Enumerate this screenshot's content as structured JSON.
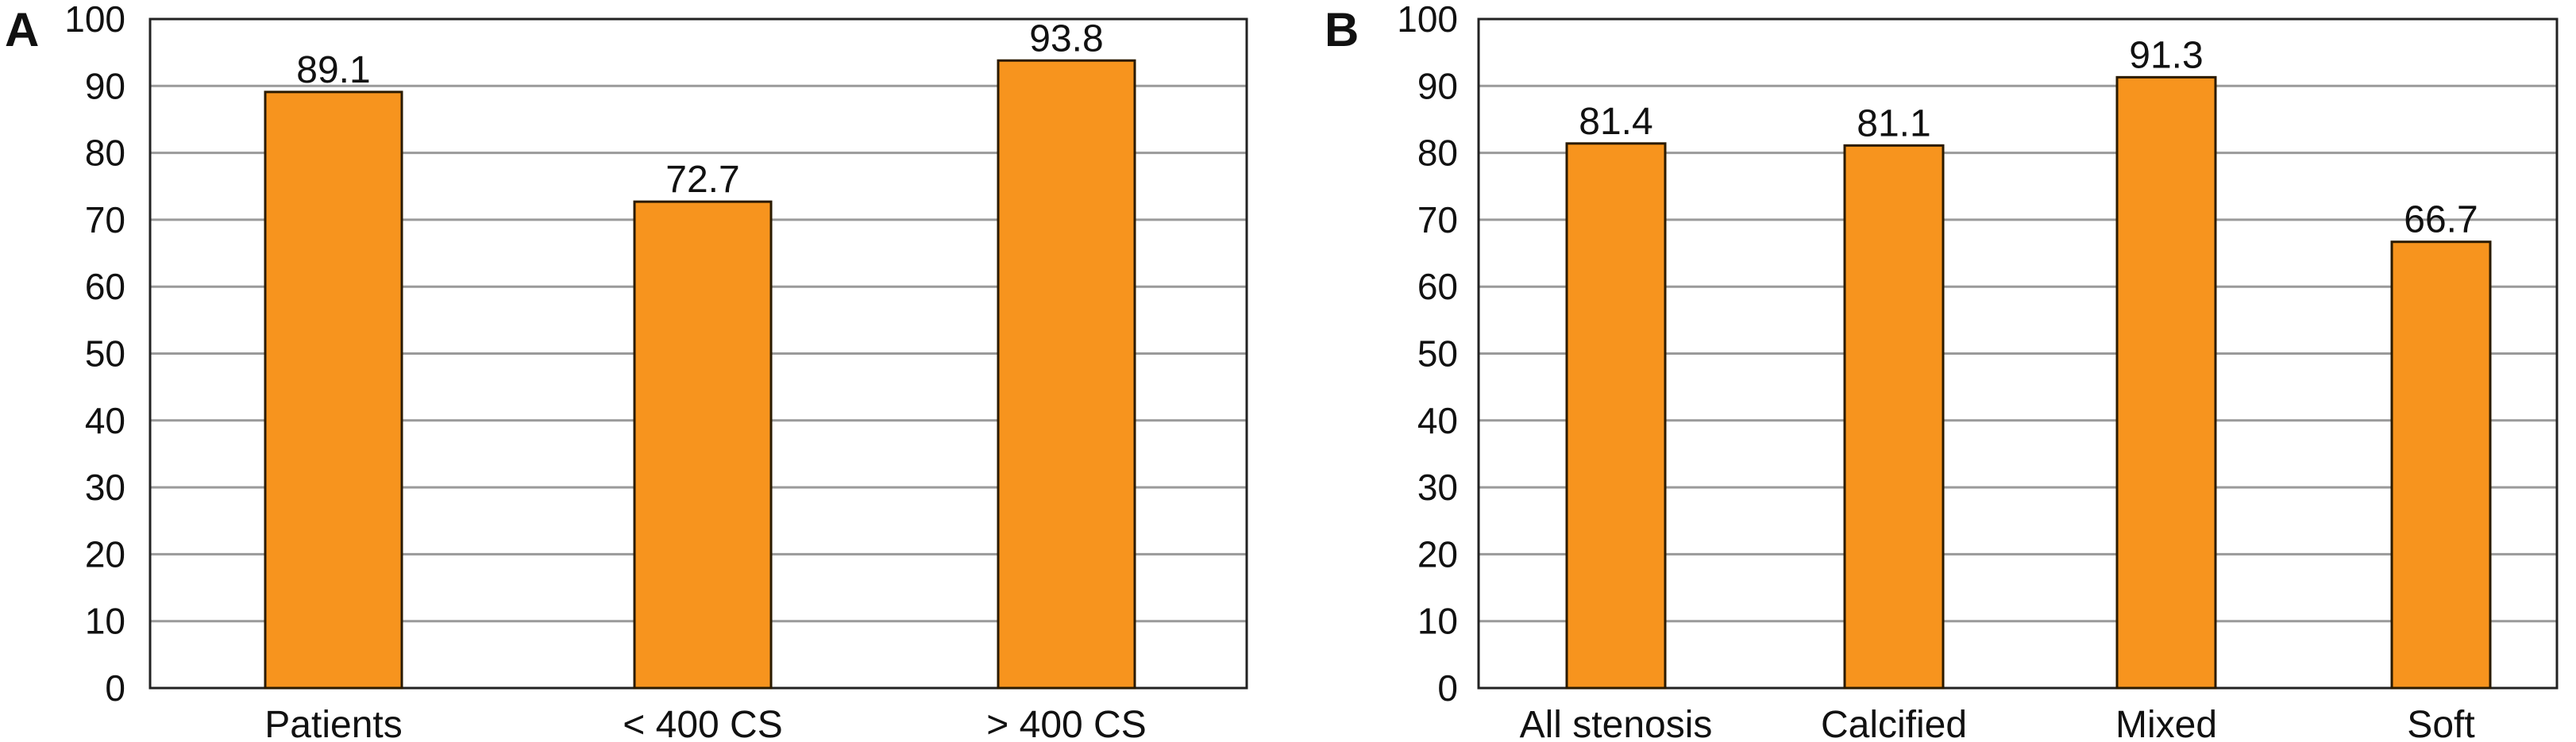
{
  "colors": {
    "bar_fill": "#F7941E",
    "grid": "#9a9a9a",
    "frame": "#222222"
  },
  "chart_data": [
    {
      "panel": "A",
      "type": "bar",
      "categories": [
        "Patients",
        "< 400 CS",
        "> 400 CS"
      ],
      "values": [
        89.1,
        72.7,
        93.8
      ],
      "value_labels": [
        "89.1",
        "72.7",
        "93.8"
      ],
      "ylim": [
        0,
        100
      ],
      "yticks": [
        0,
        10,
        20,
        30,
        40,
        50,
        60,
        70,
        80,
        90,
        100
      ],
      "grid": true,
      "title": "",
      "xlabel": "",
      "ylabel": ""
    },
    {
      "panel": "B",
      "type": "bar",
      "categories": [
        "All stenosis",
        "Calcified",
        "Mixed",
        "Soft"
      ],
      "values": [
        81.4,
        81.1,
        91.3,
        66.7
      ],
      "value_labels": [
        "81.4",
        "81.1",
        "91.3",
        "66.7"
      ],
      "ylim": [
        0,
        100
      ],
      "yticks": [
        0,
        10,
        20,
        30,
        40,
        50,
        60,
        70,
        80,
        90,
        100
      ],
      "grid": true,
      "title": "",
      "xlabel": "",
      "ylabel": ""
    }
  ]
}
